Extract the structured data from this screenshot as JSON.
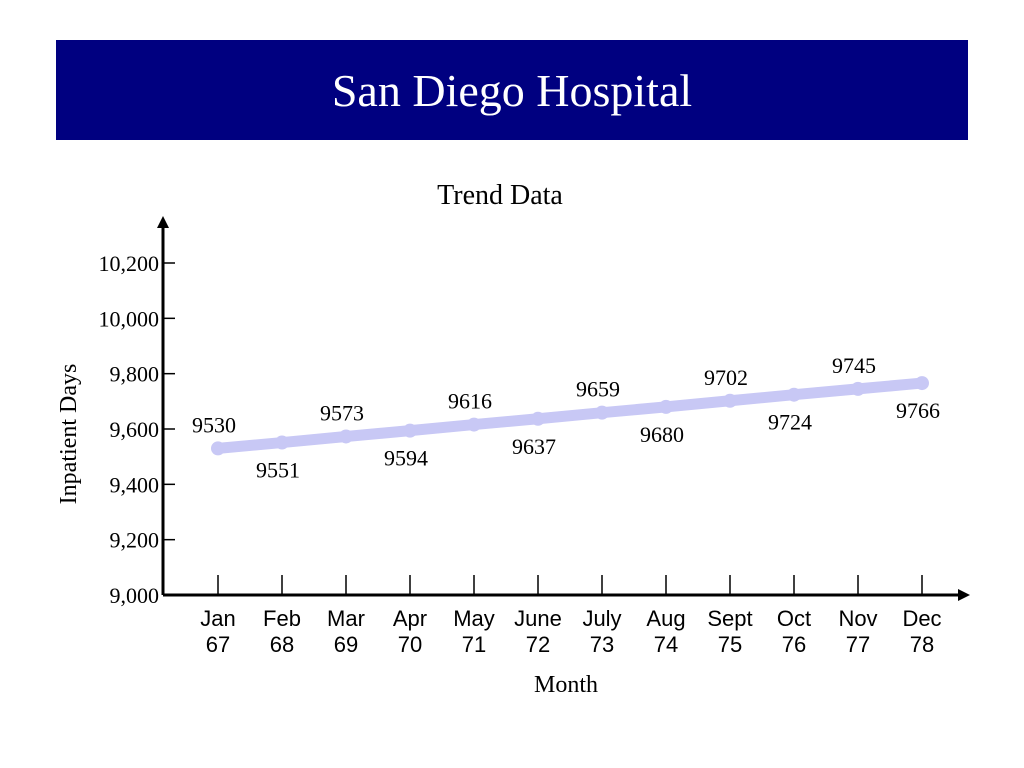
{
  "page": {
    "title": "San Diego Hospital"
  },
  "chart_data": {
    "type": "line",
    "title": "Trend Data",
    "xlabel": "Month",
    "ylabel": "Inpatient Days",
    "categories": [
      [
        "Jan",
        "67"
      ],
      [
        "Feb",
        "68"
      ],
      [
        "Mar",
        "69"
      ],
      [
        "Apr",
        "70"
      ],
      [
        "May",
        "71"
      ],
      [
        "June",
        "72"
      ],
      [
        "July",
        "73"
      ],
      [
        "Aug",
        "74"
      ],
      [
        "Sept",
        "75"
      ],
      [
        "Oct",
        "76"
      ],
      [
        "Nov",
        "77"
      ],
      [
        "Dec",
        "78"
      ]
    ],
    "values": [
      9530,
      9551,
      9573,
      9594,
      9616,
      9637,
      9659,
      9680,
      9702,
      9724,
      9745,
      9766
    ],
    "ylim": [
      9000,
      10200
    ],
    "yticks": [
      9000,
      9200,
      9400,
      9600,
      9800,
      10000,
      10200
    ],
    "ytick_labels": [
      "9,000",
      "9,200",
      "9,400",
      "9,600",
      "9,800",
      "10,000",
      "10,200"
    ],
    "label_positions": [
      "above",
      "below",
      "above",
      "below",
      "above",
      "below",
      "above",
      "below",
      "above",
      "below",
      "above",
      "below"
    ],
    "line_color": "#c8c8f5",
    "grid": false,
    "legend": "none"
  }
}
